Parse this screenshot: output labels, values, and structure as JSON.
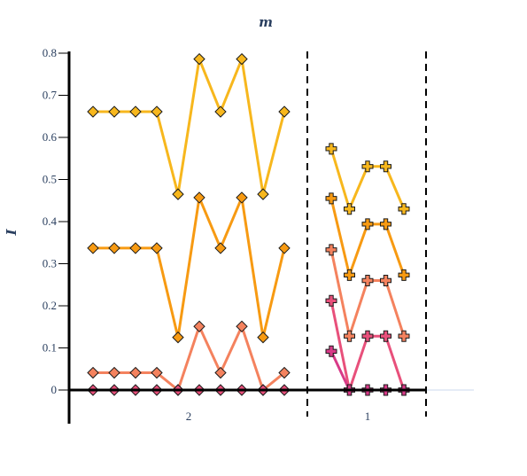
{
  "chart_data": {
    "type": "line",
    "title": "m",
    "xlabel": "",
    "ylabel": "I",
    "ylim": [
      0,
      0.8
    ],
    "yticks": [
      0,
      0.1,
      0.2,
      0.3,
      0.4,
      0.5,
      0.6,
      0.7,
      0.8
    ],
    "ytick_labels": [
      "0",
      "0.1",
      "0.2",
      "0.3",
      "0.4",
      "0.5",
      "0.6",
      "0.7",
      "0.8"
    ],
    "grid": false,
    "legend": "none",
    "groups": [
      {
        "label": "2",
        "marker": "diamond",
        "series": [
          {
            "color": "#f7b71d",
            "values": [
              0.661,
              0.661,
              0.661,
              0.661,
              0.465,
              0.786,
              0.661,
              0.786,
              0.465,
              0.661
            ]
          },
          {
            "color": "#f79a12",
            "values": [
              0.337,
              0.337,
              0.337,
              0.337,
              0.125,
              0.457,
              0.337,
              0.457,
              0.125,
              0.337
            ]
          },
          {
            "color": "#f4825e",
            "values": [
              0.041,
              0.041,
              0.041,
              0.041,
              0.0,
              0.151,
              0.041,
              0.151,
              0.0,
              0.041
            ]
          },
          {
            "color": "#e8507b",
            "values": [
              0,
              0,
              0,
              0,
              0,
              0,
              0,
              0,
              0,
              0
            ]
          }
        ]
      },
      {
        "label": "1",
        "marker": "cross",
        "series": [
          {
            "color": "#f7b71d",
            "values": [
              0.573,
              0.43,
              0.531,
              0.531,
              0.43
            ]
          },
          {
            "color": "#f79a12",
            "values": [
              0.455,
              0.273,
              0.394,
              0.394,
              0.273
            ]
          },
          {
            "color": "#f4825e",
            "values": [
              0.333,
              0.128,
              0.26,
              0.26,
              0.128
            ]
          },
          {
            "color": "#e8507b",
            "values": [
              0.212,
              0.0,
              0.128,
              0.128,
              0.0
            ]
          },
          {
            "color": "#d83a88",
            "values": [
              0.092,
              0.0,
              0.0,
              0.0,
              0.0
            ]
          }
        ]
      }
    ]
  }
}
